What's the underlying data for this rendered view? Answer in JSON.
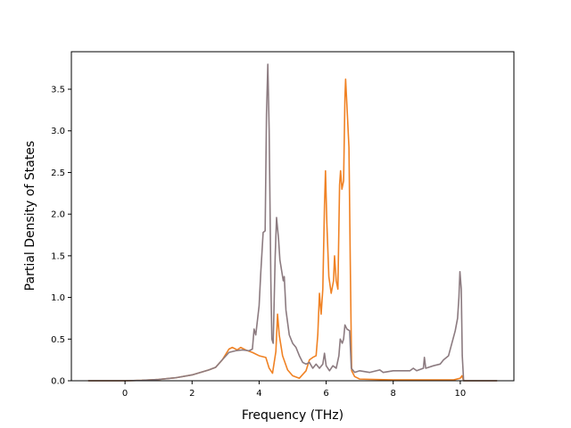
{
  "chart_data": {
    "type": "line",
    "title": "",
    "xlabel": "Frequency (THz)",
    "ylabel": "Partial Density of States",
    "xlim": [
      -1.6,
      11.6
    ],
    "ylim": [
      0.0,
      3.95
    ],
    "xticks": [
      0,
      2,
      4,
      6,
      8,
      10
    ],
    "xtick_labels": [
      "0",
      "2",
      "4",
      "6",
      "8",
      "10"
    ],
    "yticks": [
      0.0,
      0.5,
      1.0,
      1.5,
      2.0,
      2.5,
      3.0,
      3.5
    ],
    "ytick_labels": [
      "0.0",
      "0.5",
      "1.0",
      "1.5",
      "2.0",
      "2.5",
      "3.0",
      "3.5"
    ],
    "grid": false,
    "series": [
      {
        "color": "#f08224",
        "points": [
          [
            -1.1,
            0.0
          ],
          [
            0.0,
            0.0
          ],
          [
            0.5,
            0.005
          ],
          [
            1.0,
            0.015
          ],
          [
            1.5,
            0.035
          ],
          [
            2.0,
            0.07
          ],
          [
            2.5,
            0.13
          ],
          [
            2.7,
            0.16
          ],
          [
            2.9,
            0.25
          ],
          [
            3.1,
            0.38
          ],
          [
            3.2,
            0.4
          ],
          [
            3.35,
            0.37
          ],
          [
            3.45,
            0.4
          ],
          [
            3.6,
            0.37
          ],
          [
            3.8,
            0.34
          ],
          [
            4.0,
            0.3
          ],
          [
            4.2,
            0.28
          ],
          [
            4.3,
            0.15
          ],
          [
            4.4,
            0.09
          ],
          [
            4.5,
            0.35
          ],
          [
            4.55,
            0.8
          ],
          [
            4.6,
            0.55
          ],
          [
            4.7,
            0.3
          ],
          [
            4.85,
            0.13
          ],
          [
            5.0,
            0.06
          ],
          [
            5.2,
            0.03
          ],
          [
            5.4,
            0.12
          ],
          [
            5.5,
            0.25
          ],
          [
            5.6,
            0.28
          ],
          [
            5.7,
            0.3
          ],
          [
            5.75,
            0.55
          ],
          [
            5.8,
            1.05
          ],
          [
            5.85,
            0.8
          ],
          [
            5.9,
            1.1
          ],
          [
            5.95,
            2.1
          ],
          [
            5.98,
            2.52
          ],
          [
            6.02,
            1.9
          ],
          [
            6.08,
            1.25
          ],
          [
            6.15,
            1.05
          ],
          [
            6.22,
            1.2
          ],
          [
            6.25,
            1.5
          ],
          [
            6.3,
            1.2
          ],
          [
            6.35,
            1.1
          ],
          [
            6.4,
            2.35
          ],
          [
            6.43,
            2.52
          ],
          [
            6.47,
            2.3
          ],
          [
            6.52,
            2.4
          ],
          [
            6.56,
            3.4
          ],
          [
            6.58,
            3.62
          ],
          [
            6.62,
            3.3
          ],
          [
            6.68,
            2.8
          ],
          [
            6.72,
            1.4
          ],
          [
            6.76,
            0.12
          ],
          [
            6.85,
            0.05
          ],
          [
            7.0,
            0.02
          ],
          [
            8.0,
            0.01
          ],
          [
            9.0,
            0.01
          ],
          [
            9.8,
            0.01
          ],
          [
            10.0,
            0.03
          ],
          [
            10.05,
            0.06
          ],
          [
            10.1,
            0.0
          ],
          [
            11.1,
            0.0
          ]
        ]
      },
      {
        "color": "#8c7b80",
        "points": [
          [
            -1.1,
            0.0
          ],
          [
            0.0,
            0.0
          ],
          [
            0.5,
            0.005
          ],
          [
            1.0,
            0.015
          ],
          [
            1.5,
            0.035
          ],
          [
            2.0,
            0.07
          ],
          [
            2.5,
            0.13
          ],
          [
            2.7,
            0.16
          ],
          [
            2.9,
            0.25
          ],
          [
            3.1,
            0.34
          ],
          [
            3.3,
            0.36
          ],
          [
            3.5,
            0.37
          ],
          [
            3.7,
            0.36
          ],
          [
            3.8,
            0.38
          ],
          [
            3.85,
            0.62
          ],
          [
            3.9,
            0.55
          ],
          [
            4.0,
            0.9
          ],
          [
            4.05,
            1.3
          ],
          [
            4.12,
            1.78
          ],
          [
            4.18,
            1.8
          ],
          [
            4.22,
            3.2
          ],
          [
            4.26,
            3.8
          ],
          [
            4.3,
            3.0
          ],
          [
            4.35,
            1.2
          ],
          [
            4.38,
            0.5
          ],
          [
            4.42,
            0.45
          ],
          [
            4.48,
            1.5
          ],
          [
            4.52,
            1.96
          ],
          [
            4.58,
            1.7
          ],
          [
            4.62,
            1.45
          ],
          [
            4.68,
            1.3
          ],
          [
            4.72,
            1.2
          ],
          [
            4.75,
            1.25
          ],
          [
            4.8,
            0.85
          ],
          [
            4.9,
            0.55
          ],
          [
            5.0,
            0.45
          ],
          [
            5.1,
            0.4
          ],
          [
            5.2,
            0.3
          ],
          [
            5.3,
            0.22
          ],
          [
            5.4,
            0.2
          ],
          [
            5.5,
            0.22
          ],
          [
            5.6,
            0.15
          ],
          [
            5.7,
            0.2
          ],
          [
            5.8,
            0.15
          ],
          [
            5.9,
            0.2
          ],
          [
            5.95,
            0.33
          ],
          [
            6.0,
            0.18
          ],
          [
            6.1,
            0.12
          ],
          [
            6.2,
            0.18
          ],
          [
            6.3,
            0.15
          ],
          [
            6.38,
            0.3
          ],
          [
            6.42,
            0.5
          ],
          [
            6.48,
            0.45
          ],
          [
            6.52,
            0.5
          ],
          [
            6.56,
            0.67
          ],
          [
            6.62,
            0.62
          ],
          [
            6.7,
            0.6
          ],
          [
            6.75,
            0.15
          ],
          [
            6.85,
            0.1
          ],
          [
            7.0,
            0.12
          ],
          [
            7.3,
            0.1
          ],
          [
            7.6,
            0.13
          ],
          [
            7.7,
            0.1
          ],
          [
            8.0,
            0.12
          ],
          [
            8.5,
            0.12
          ],
          [
            8.6,
            0.15
          ],
          [
            8.7,
            0.12
          ],
          [
            8.9,
            0.15
          ],
          [
            8.93,
            0.28
          ],
          [
            8.97,
            0.15
          ],
          [
            9.2,
            0.18
          ],
          [
            9.4,
            0.2
          ],
          [
            9.5,
            0.25
          ],
          [
            9.65,
            0.3
          ],
          [
            9.75,
            0.45
          ],
          [
            9.85,
            0.6
          ],
          [
            9.92,
            0.75
          ],
          [
            9.96,
            1.0
          ],
          [
            9.99,
            1.31
          ],
          [
            10.03,
            1.1
          ],
          [
            10.06,
            0.3
          ],
          [
            10.1,
            0.0
          ],
          [
            11.1,
            0.0
          ]
        ]
      }
    ]
  }
}
